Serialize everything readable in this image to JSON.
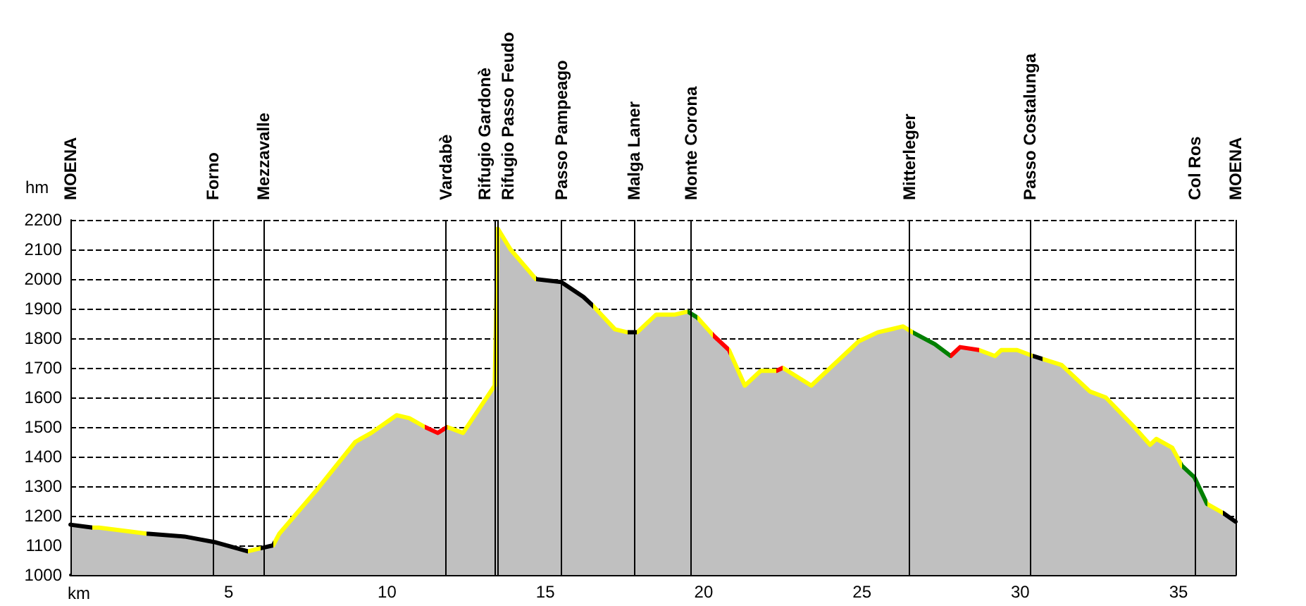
{
  "chart_data": {
    "type": "area",
    "xlabel": "km",
    "ylabel": "hm",
    "xlim": [
      0,
      36.8
    ],
    "xticks": [
      5,
      10,
      15,
      20,
      25,
      30,
      35
    ],
    "ylim": [
      1000,
      2200
    ],
    "yticks": [
      1000,
      1100,
      1200,
      1300,
      1400,
      1500,
      1600,
      1700,
      1800,
      1900,
      2000,
      2100,
      2200
    ],
    "grid": "y",
    "marker": "none",
    "line_style": "solid",
    "x": [
      0,
      0.7,
      0.9,
      2.4,
      3.6,
      4.6,
      5.6,
      6.0,
      6.4,
      6.6,
      7.8,
      9.0,
      9.5,
      10.3,
      10.7,
      11.2,
      11.6,
      11.9,
      12.4,
      13.4,
      13.5,
      13.9,
      14.7,
      15.5,
      16.2,
      16.5,
      17.2,
      17.6,
      17.9,
      18.5,
      19.1,
      19.5,
      19.8,
      20.3,
      20.8,
      21.3,
      21.8,
      22.3,
      22.5,
      23.4,
      24.0,
      24.9,
      25.5,
      26.3,
      26.6,
      27.3,
      27.8,
      28.1,
      28.7,
      29.2,
      29.4,
      29.9,
      30.4,
      30.7,
      31.3,
      32.2,
      32.7,
      33.6,
      34.1,
      34.3,
      34.8,
      35.1,
      35.5,
      35.9,
      36.4,
      36.8
    ],
    "series": [
      {
        "color": "#c0c0c0",
        "values": [
          1170,
          1160,
          1160,
          1140,
          1130,
          1110,
          1080,
          1090,
          1100,
          1140,
          1290,
          1450,
          1480,
          1540,
          1530,
          1500,
          1480,
          1500,
          1480,
          1640,
          2170,
          2100,
          2000,
          1990,
          1940,
          1910,
          1830,
          1820,
          1820,
          1880,
          1880,
          1890,
          1870,
          1810,
          1760,
          1640,
          1690,
          1690,
          1700,
          1640,
          1700,
          1790,
          1820,
          1840,
          1820,
          1780,
          1740,
          1770,
          1760,
          1740,
          1760,
          1760,
          1740,
          1730,
          1710,
          1620,
          1600,
          1500,
          1440,
          1460,
          1430,
          1370,
          1330,
          1240,
          1210,
          1180
        ],
        "colors": [
          "#000000",
          "#ffff00",
          "#ffff00",
          "#000000",
          "#000000",
          "#000000",
          "#ffff00",
          "#000000",
          "#ffff00",
          "#ffff00",
          "#ffff00",
          "#ffff00",
          "#ffff00",
          "#ffff00",
          "#ffff00",
          "#ff0000",
          "#ff0000",
          "#ffff00",
          "#ffff00",
          "#ffff00",
          "#ffff00",
          "#ffff00",
          "#000000",
          "#000000",
          "#000000",
          "#ffff00",
          "#ffff00",
          "#000000",
          "#ffff00",
          "#ffff00",
          "#ffff00",
          "#008000",
          "#ffff00",
          "#ff0000",
          "#ffff00",
          "#ffff00",
          "#ffff00",
          "#ff0000",
          "#ffff00",
          "#ffff00",
          "#ffff00",
          "#ffff00",
          "#ffff00",
          "#ffff00",
          "#008000",
          "#008000",
          "#ff0000",
          "#ff0000",
          "#ffff00",
          "#ffff00",
          "#ffff00",
          "#ffff00",
          "#000000",
          "#ffff00",
          "#ffff00",
          "#ffff00",
          "#ffff00",
          "#ffff00",
          "#ffff00",
          "#ffff00",
          "#ffff00",
          "#008000",
          "#008000",
          "#ffff00",
          "#000000",
          "#000000"
        ]
      }
    ],
    "ref_lines": [
      {
        "axis": "x",
        "value": 0,
        "label": "MOENA"
      },
      {
        "axis": "x",
        "value": 4.5,
        "label": "Forno"
      },
      {
        "axis": "x",
        "value": 6.1,
        "label": "Mezzavalle"
      },
      {
        "axis": "x",
        "value": 11.85,
        "label": "Vardabè"
      },
      {
        "axis": "x",
        "value": 13.4,
        "label": "Rifugio Gardonè"
      },
      {
        "axis": "x",
        "value": 13.5,
        "label": "Rifugio Passo Feudo"
      },
      {
        "axis": "x",
        "value": 15.5,
        "label": "Passo Pampeago"
      },
      {
        "axis": "x",
        "value": 17.8,
        "label": "Malga Laner"
      },
      {
        "axis": "x",
        "value": 19.6,
        "label": "Monte Corona"
      },
      {
        "axis": "x",
        "value": 26.5,
        "label": "Mitterleger"
      },
      {
        "axis": "x",
        "value": 30.3,
        "label": "Passo Costalunga"
      },
      {
        "axis": "x",
        "value": 35.5,
        "label": "Col Ros"
      },
      {
        "axis": "x",
        "value": 36.8,
        "label": "MOENA"
      }
    ]
  }
}
